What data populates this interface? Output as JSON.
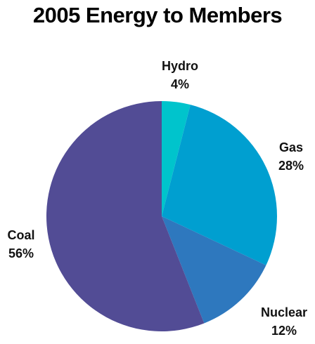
{
  "chart_data": {
    "type": "pie",
    "title": "2005 Energy to Members",
    "slices": [
      {
        "name": "Hydro",
        "value": 4,
        "label": "4%",
        "color": "#00c4cc"
      },
      {
        "name": "Gas",
        "value": 28,
        "label": "28%",
        "color": "#009fd0"
      },
      {
        "name": "Nuclear",
        "value": 12,
        "label": "12%",
        "color": "#2e78be"
      },
      {
        "name": "Coal",
        "value": 56,
        "label": "56%",
        "color": "#524c95"
      }
    ],
    "start_angle": "12 o'clock",
    "direction": "clockwise",
    "legend": "none"
  }
}
